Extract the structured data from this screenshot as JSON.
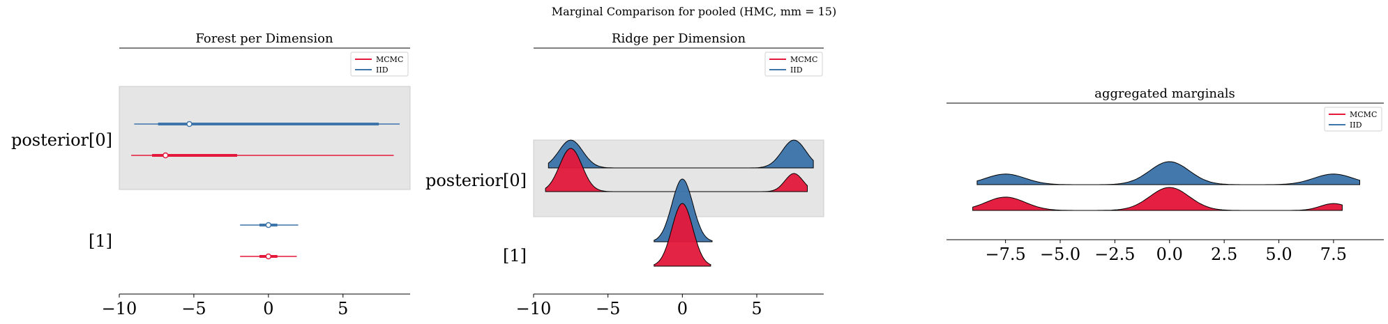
{
  "figure": {
    "suptitle": "Marginal Comparison for pooled (HMC, mm = 15)"
  },
  "colors": {
    "mcmc": "#e3183b",
    "iid": "#3d74aa",
    "highlight": "#e5e5e5"
  },
  "chart_data": [
    {
      "type": "forest",
      "title": "Forest per Dimension",
      "xlim": [
        -10,
        9.5
      ],
      "xticks": [
        -10,
        -5,
        0,
        5
      ],
      "xtick_labels": [
        "−10",
        "−5",
        "0",
        "5"
      ],
      "ytick_labels": [
        "posterior[0]",
        "[1]"
      ],
      "legend": {
        "placement": "top-right",
        "entries": [
          "MCMC",
          "IID"
        ]
      },
      "series": [
        {
          "name": "MCMC",
          "color": "#e3183b",
          "rows": [
            {
              "dim": "posterior[0]",
              "hdi_low": -9.2,
              "hdi_high": 8.4,
              "iqr_low": -7.8,
              "iqr_high": -2.1,
              "median": -6.9
            },
            {
              "dim": "[1]",
              "hdi_low": -1.9,
              "hdi_high": 1.9,
              "iqr_low": -0.6,
              "iqr_high": 0.6,
              "median": 0.0
            }
          ]
        },
        {
          "name": "IID",
          "color": "#3d74aa",
          "rows": [
            {
              "dim": "posterior[0]",
              "hdi_low": -9.0,
              "hdi_high": 8.8,
              "iqr_low": -7.4,
              "iqr_high": 7.4,
              "median": -5.3
            },
            {
              "dim": "[1]",
              "hdi_low": -1.9,
              "hdi_high": 2.0,
              "iqr_low": -0.6,
              "iqr_high": 0.6,
              "median": 0.0
            }
          ]
        }
      ]
    },
    {
      "type": "ridge",
      "title": "Ridge per Dimension",
      "xlim": [
        -10,
        9.5
      ],
      "xticks": [
        -10,
        -5,
        0,
        5
      ],
      "xtick_labels": [
        "−10",
        "−5",
        "0",
        "5"
      ],
      "ytick_labels": [
        "posterior[0]",
        "[1]"
      ],
      "legend": {
        "placement": "top-right",
        "entries": [
          "MCMC",
          "IID"
        ]
      },
      "series": [
        {
          "name": "MCMC",
          "color": "#e3183b",
          "rows": [
            {
              "dim": "posterior[0]",
              "x_range": [
                -9.2,
                8.4
              ],
              "components": [
                {
                  "mu": -7.5,
                  "sigma": 0.75,
                  "weight": 1.0
                },
                {
                  "mu": 7.5,
                  "sigma": 0.6,
                  "weight": 0.42
                }
              ]
            },
            {
              "dim": "[1]",
              "x_range": [
                -1.9,
                1.9
              ],
              "components": [
                {
                  "mu": 0.0,
                  "sigma": 0.7,
                  "weight": 1.0
                }
              ]
            }
          ]
        },
        {
          "name": "IID",
          "color": "#3d74aa",
          "rows": [
            {
              "dim": "posterior[0]",
              "x_range": [
                -9.0,
                8.8
              ],
              "components": [
                {
                  "mu": -7.5,
                  "sigma": 0.8,
                  "weight": 0.6
                },
                {
                  "mu": 7.5,
                  "sigma": 0.8,
                  "weight": 0.6
                }
              ]
            },
            {
              "dim": "[1]",
              "x_range": [
                -1.9,
                2.0
              ],
              "components": [
                {
                  "mu": 0.0,
                  "sigma": 0.7,
                  "weight": 1.0
                }
              ]
            }
          ]
        }
      ]
    },
    {
      "type": "area",
      "title": "aggregated marginals",
      "xlim": [
        -10.2,
        9.8
      ],
      "xticks": [
        -7.5,
        -5.0,
        -2.5,
        0.0,
        2.5,
        5.0,
        7.5
      ],
      "xtick_labels": [
        "−7.5",
        "−5.0",
        "−2.5",
        "0.0",
        "2.5",
        "5.0",
        "7.5"
      ],
      "legend": {
        "placement": "top-right",
        "entries": [
          "MCMC",
          "IID"
        ]
      },
      "series": [
        {
          "name": "MCMC",
          "color": "#e3183b",
          "x_range": [
            -9.0,
            7.9
          ],
          "components": [
            {
              "mu": -7.5,
              "sigma": 0.9,
              "weight": 0.58
            },
            {
              "mu": 0.0,
              "sigma": 0.9,
              "weight": 1.0
            },
            {
              "mu": 7.5,
              "sigma": 0.6,
              "weight": 0.3
            }
          ]
        },
        {
          "name": "IID",
          "color": "#3d74aa",
          "x_range": [
            -8.8,
            8.7
          ],
          "components": [
            {
              "mu": -7.5,
              "sigma": 0.9,
              "weight": 0.46
            },
            {
              "mu": 0.0,
              "sigma": 0.9,
              "weight": 1.0
            },
            {
              "mu": 7.5,
              "sigma": 0.9,
              "weight": 0.46
            }
          ]
        }
      ]
    }
  ]
}
